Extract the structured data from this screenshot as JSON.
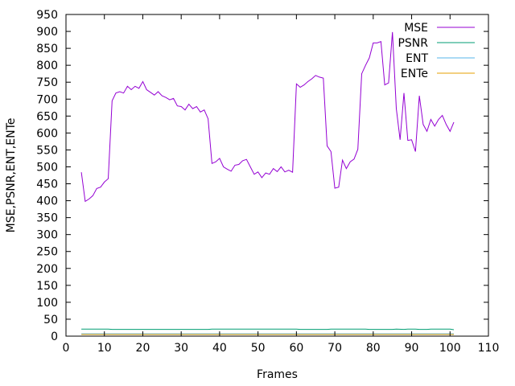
{
  "chart_data": {
    "type": "line",
    "title": "",
    "xlabel": "Frames",
    "ylabel": "MSE,PSNR,ENT,ENTe",
    "xlim": [
      0,
      110
    ],
    "ylim": [
      0,
      950
    ],
    "xticks": [
      0,
      10,
      20,
      30,
      40,
      50,
      60,
      70,
      80,
      90,
      100,
      110
    ],
    "yticks": [
      0,
      50,
      100,
      150,
      200,
      250,
      300,
      350,
      400,
      450,
      500,
      550,
      600,
      650,
      700,
      750,
      800,
      850,
      900,
      950
    ],
    "grid": false,
    "legend_position": "top-right",
    "series": [
      {
        "name": "MSE",
        "color": "#9400d3",
        "x": [
          4,
          5,
          6,
          7,
          8,
          9,
          10,
          11,
          12,
          13,
          14,
          15,
          16,
          17,
          18,
          19,
          20,
          21,
          22,
          23,
          24,
          25,
          26,
          27,
          28,
          29,
          30,
          31,
          32,
          33,
          34,
          35,
          36,
          37,
          38,
          39,
          40,
          41,
          42,
          43,
          44,
          45,
          46,
          47,
          48,
          49,
          50,
          51,
          52,
          53,
          54,
          55,
          56,
          57,
          58,
          59,
          60,
          61,
          62,
          63,
          64,
          65,
          66,
          67,
          68,
          69,
          70,
          71,
          72,
          73,
          74,
          75,
          76,
          77,
          78,
          79,
          80,
          81,
          82,
          83,
          84,
          85,
          86,
          87,
          88,
          89,
          90,
          91,
          92,
          93,
          94,
          95,
          96,
          97,
          98,
          99,
          100,
          101
        ],
        "values": [
          484,
          398,
          405,
          415,
          436,
          440,
          455,
          465,
          695,
          718,
          722,
          718,
          738,
          728,
          738,
          732,
          752,
          728,
          720,
          712,
          722,
          710,
          705,
          698,
          702,
          680,
          678,
          668,
          685,
          672,
          678,
          662,
          668,
          642,
          510,
          515,
          525,
          500,
          493,
          487,
          505,
          507,
          518,
          522,
          500,
          478,
          485,
          468,
          482,
          478,
          495,
          486,
          500,
          485,
          490,
          484,
          745,
          735,
          742,
          752,
          760,
          770,
          765,
          762,
          562,
          545,
          437,
          440,
          520,
          495,
          515,
          523,
          552,
          775,
          800,
          822,
          866,
          866,
          870,
          742,
          748,
          898,
          672,
          580,
          718,
          578,
          580,
          545,
          710,
          625,
          605,
          640,
          620,
          640,
          652,
          625,
          605,
          632
        ]
      },
      {
        "name": "PSNR",
        "color": "#009e73",
        "x": [
          4,
          11,
          12,
          37,
          38,
          60,
          61,
          68,
          69,
          78,
          79,
          85,
          86,
          88,
          89,
          91,
          92,
          94,
          95,
          100,
          101
        ],
        "values": [
          21,
          21,
          20,
          20,
          21,
          21,
          20,
          20,
          21,
          21,
          20,
          20,
          21,
          20,
          21,
          21,
          20,
          20,
          21,
          21,
          19
        ]
      },
      {
        "name": "ENT",
        "color": "#56b4e9",
        "x": [
          4,
          101
        ],
        "values": [
          7,
          7
        ]
      },
      {
        "name": "ENTe",
        "color": "#e69f00",
        "x": [
          4,
          101
        ],
        "values": [
          5,
          5
        ]
      }
    ]
  }
}
